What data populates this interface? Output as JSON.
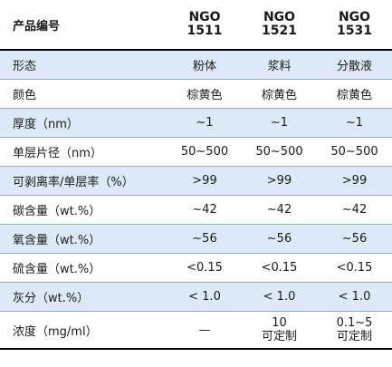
{
  "header": {
    "label": "产品编号",
    "products": [
      {
        "name": "NGO",
        "code": "1511"
      },
      {
        "name": "NGO",
        "code": "1521"
      },
      {
        "name": "NGO",
        "code": "1531"
      }
    ]
  },
  "rows": [
    {
      "label": "形态",
      "values": [
        "粉体",
        "浆料",
        "分散液"
      ]
    },
    {
      "label": "颜色",
      "values": [
        "棕黄色",
        "棕黄色",
        "棕黄色"
      ]
    },
    {
      "label": "厚度（nm）",
      "values": [
        "~1",
        "~1",
        "~1"
      ]
    },
    {
      "label": "单层片径（nm）",
      "values": [
        "50~500",
        "50~500",
        "50~500"
      ]
    },
    {
      "label": "可剥离率/单层率（%）",
      "values": [
        ">99",
        ">99",
        ">99"
      ]
    },
    {
      "label": "碳含量（wt.%）",
      "values": [
        "~42",
        "~42",
        "~42"
      ]
    },
    {
      "label": "氧含量（wt.%）",
      "values": [
        "~56",
        "~56",
        "~56"
      ]
    },
    {
      "label": "硫含量（wt.%）",
      "values": [
        "<0.15",
        "<0.15",
        "<0.15"
      ]
    },
    {
      "label": "灰分（wt.%）",
      "values": [
        "< 1.0",
        "< 1.0",
        "< 1.0"
      ]
    }
  ],
  "concentration": {
    "label": "浓度（mg/ml）",
    "values": [
      {
        "line1": "—",
        "line2": ""
      },
      {
        "line1": "10",
        "line2": "可定制"
      },
      {
        "line1": "0.1~5",
        "line2": "可定制"
      }
    ]
  }
}
